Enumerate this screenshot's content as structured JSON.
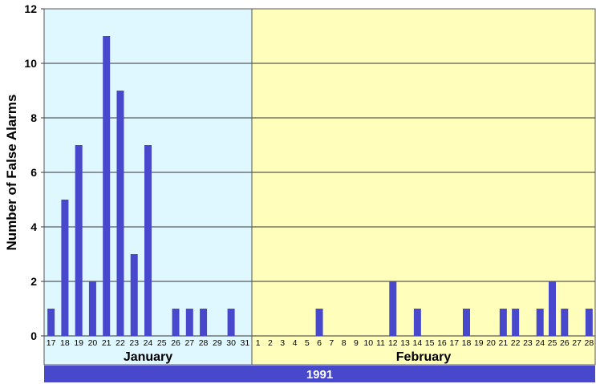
{
  "chart_data": {
    "type": "bar",
    "title": "",
    "ylabel": "Number of False Alarms",
    "xlabel": "1991",
    "ylim": [
      0,
      12
    ],
    "yticks": [
      0,
      2,
      4,
      6,
      8,
      10,
      12
    ],
    "grid": true,
    "groups": [
      {
        "label": "January",
        "color": "#dff7ff",
        "categories": [
          "17",
          "18",
          "19",
          "20",
          "21",
          "22",
          "23",
          "24",
          "25",
          "26",
          "27",
          "28",
          "29",
          "30",
          "31"
        ],
        "values": [
          1,
          5,
          7,
          2,
          11,
          9,
          3,
          7,
          0,
          1,
          1,
          1,
          0,
          1,
          0
        ]
      },
      {
        "label": "February",
        "color": "#ffffbb",
        "categories": [
          "1",
          "2",
          "3",
          "4",
          "5",
          "6",
          "7",
          "8",
          "9",
          "10",
          "11",
          "12",
          "13",
          "14",
          "15",
          "16",
          "17",
          "18",
          "19",
          "20",
          "21",
          "22",
          "23",
          "24",
          "25",
          "26",
          "27",
          "28"
        ],
        "values": [
          0,
          0,
          0,
          0,
          0,
          1,
          0,
          0,
          0,
          0,
          0,
          2,
          0,
          1,
          0,
          0,
          0,
          1,
          0,
          0,
          1,
          1,
          0,
          1,
          2,
          1,
          0,
          1
        ]
      }
    ],
    "bar_color": "#4848cc",
    "year_bar_color": "#4848cc"
  }
}
